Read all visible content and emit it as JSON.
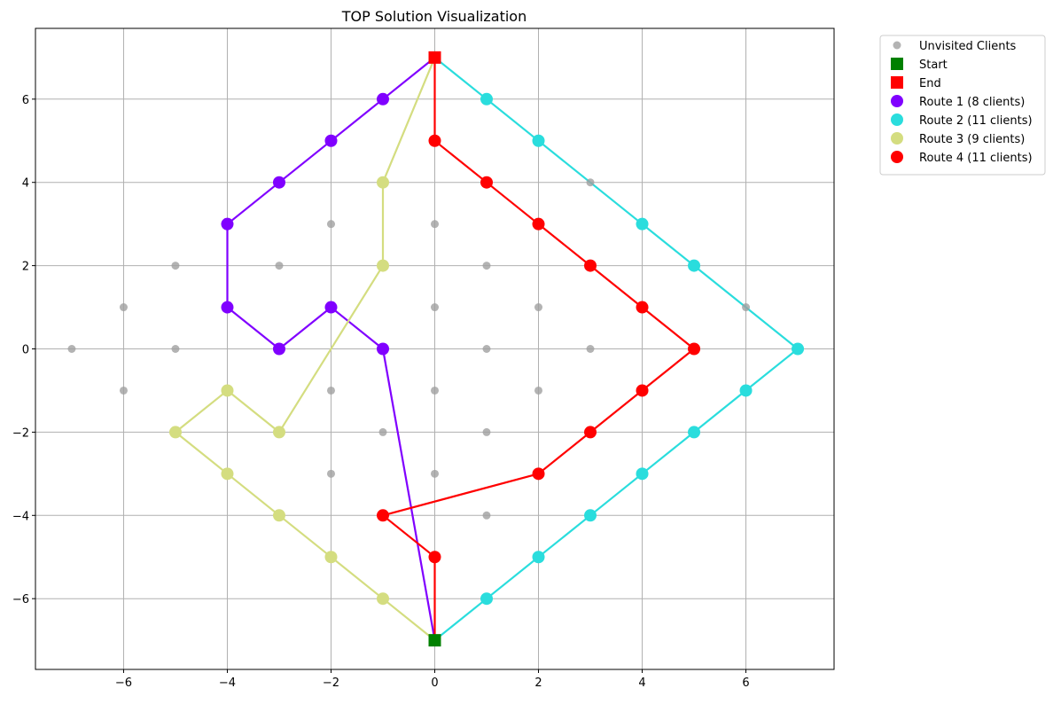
{
  "chart_data": {
    "type": "scatter",
    "title": "TOP Solution Visualization",
    "xlabel": "",
    "ylabel": "",
    "xlim": [
      -7.7,
      7.7
    ],
    "ylim": [
      -7.7,
      7.7
    ],
    "xticks": [
      -6,
      -4,
      -2,
      0,
      2,
      4,
      6
    ],
    "yticks": [
      -6,
      -4,
      -2,
      0,
      2,
      4,
      6
    ],
    "xtick_labels": [
      "−6",
      "−4",
      "−2",
      "0",
      "2",
      "4",
      "6"
    ],
    "ytick_labels": [
      "−6",
      "−4",
      "−2",
      "0",
      "2",
      "4",
      "6"
    ],
    "grid": true,
    "legend_position": "outside-top-right",
    "unvisited": {
      "name": "Unvisited Clients",
      "color": "#a0a0a0",
      "points": [
        [
          -7,
          0
        ],
        [
          -6,
          1
        ],
        [
          -6,
          -1
        ],
        [
          -5,
          2
        ],
        [
          -5,
          0
        ],
        [
          -3,
          2
        ],
        [
          -2,
          3
        ],
        [
          -2,
          -1
        ],
        [
          -2,
          -3
        ],
        [
          -1,
          -2
        ],
        [
          0,
          3
        ],
        [
          0,
          1
        ],
        [
          0,
          -1
        ],
        [
          0,
          -3
        ],
        [
          1,
          2
        ],
        [
          1,
          0
        ],
        [
          1,
          -2
        ],
        [
          1,
          -4
        ],
        [
          2,
          1
        ],
        [
          2,
          -1
        ],
        [
          3,
          4
        ],
        [
          3,
          0
        ],
        [
          6,
          1
        ]
      ]
    },
    "start": {
      "name": "Start",
      "color": "#008000",
      "point": [
        0,
        -7
      ]
    },
    "end": {
      "name": "End",
      "color": "#ff0000",
      "point": [
        0,
        7
      ]
    },
    "series": [
      {
        "name": "Route 1 (8 clients)",
        "color": "#8000ff",
        "clients": [
          [
            -1,
            6
          ],
          [
            -2,
            5
          ],
          [
            -3,
            4
          ],
          [
            -4,
            3
          ],
          [
            -4,
            1
          ],
          [
            -3,
            0
          ],
          [
            -2,
            1
          ],
          [
            -1,
            0
          ]
        ],
        "path": [
          [
            0,
            -7
          ],
          [
            -1,
            0
          ],
          [
            -2,
            1
          ],
          [
            -3,
            0
          ],
          [
            -4,
            1
          ],
          [
            -4,
            3
          ],
          [
            -3,
            4
          ],
          [
            -2,
            5
          ],
          [
            -1,
            6
          ],
          [
            0,
            7
          ]
        ]
      },
      {
        "name": "Route 2 (11 clients)",
        "color": "#2adddd",
        "clients": [
          [
            1,
            -6
          ],
          [
            2,
            -5
          ],
          [
            3,
            -4
          ],
          [
            4,
            -3
          ],
          [
            5,
            -2
          ],
          [
            6,
            -1
          ],
          [
            7,
            0
          ],
          [
            5,
            2
          ],
          [
            4,
            3
          ],
          [
            2,
            5
          ],
          [
            1,
            6
          ]
        ],
        "path": [
          [
            0,
            -7
          ],
          [
            1,
            -6
          ],
          [
            2,
            -5
          ],
          [
            3,
            -4
          ],
          [
            4,
            -3
          ],
          [
            5,
            -2
          ],
          [
            6,
            -1
          ],
          [
            7,
            0
          ],
          [
            5,
            2
          ],
          [
            4,
            3
          ],
          [
            2,
            5
          ],
          [
            1,
            6
          ],
          [
            0,
            7
          ]
        ]
      },
      {
        "name": "Route 3 (9 clients)",
        "color": "#d4dd80",
        "clients": [
          [
            -1,
            -6
          ],
          [
            -2,
            -5
          ],
          [
            -3,
            -4
          ],
          [
            -4,
            -3
          ],
          [
            -5,
            -2
          ],
          [
            -4,
            -1
          ],
          [
            -3,
            -2
          ],
          [
            -1,
            2
          ],
          [
            -1,
            4
          ]
        ],
        "path": [
          [
            0,
            -7
          ],
          [
            -1,
            -6
          ],
          [
            -2,
            -5
          ],
          [
            -3,
            -4
          ],
          [
            -4,
            -3
          ],
          [
            -5,
            -2
          ],
          [
            -4,
            -1
          ],
          [
            -3,
            -2
          ],
          [
            -1,
            2
          ],
          [
            -1,
            4
          ],
          [
            0,
            7
          ]
        ]
      },
      {
        "name": "Route 4 (11 clients)",
        "color": "#ff0000",
        "clients": [
          [
            0,
            -5
          ],
          [
            -1,
            -4
          ],
          [
            2,
            -3
          ],
          [
            3,
            -2
          ],
          [
            4,
            -1
          ],
          [
            5,
            0
          ],
          [
            4,
            1
          ],
          [
            3,
            2
          ],
          [
            2,
            3
          ],
          [
            1,
            4
          ],
          [
            0,
            5
          ]
        ],
        "path": [
          [
            0,
            -7
          ],
          [
            0,
            -5
          ],
          [
            -1,
            -4
          ],
          [
            2,
            -3
          ],
          [
            3,
            -2
          ],
          [
            4,
            -1
          ],
          [
            5,
            0
          ],
          [
            4,
            1
          ],
          [
            3,
            2
          ],
          [
            2,
            3
          ],
          [
            1,
            4
          ],
          [
            0,
            5
          ],
          [
            0,
            7
          ]
        ]
      }
    ]
  }
}
